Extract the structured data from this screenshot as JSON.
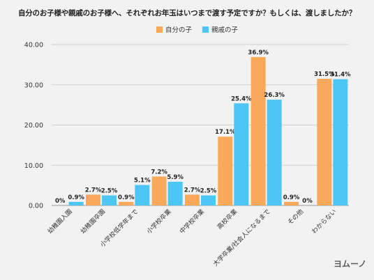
{
  "title": "自分のお子様や親戚のお子様へ、それぞれお年玉はいつまで渡す予定ですか？もしくは、渡しましたか？",
  "logo": "ヨムーノ",
  "colors": {
    "series1": "#f9a95a",
    "series2": "#4dc5f5",
    "grid": "#cfcfcf"
  },
  "chart_data": {
    "type": "bar",
    "title": "自分のお子様や親戚のお子様へ、それぞれお年玉はいつまで渡す予定ですか？もしくは、渡しましたか？",
    "xlabel": "",
    "ylabel": "",
    "ylim": [
      0,
      40
    ],
    "yticks": [
      0,
      10,
      20,
      30,
      40
    ],
    "ytick_labels": [
      "0.00",
      "10.00",
      "20.00",
      "30.00",
      "40.00"
    ],
    "grid": true,
    "legend_position": "top-center",
    "categories": [
      "幼稚園入園",
      "幼稚園卒園",
      "小学校低学年まで",
      "小学校卒業",
      "中学校卒業",
      "高校卒業",
      "大学卒業/社会人になるまで",
      "その他",
      "わからない"
    ],
    "series": [
      {
        "name": "自分の子",
        "values": [
          0,
          2.7,
          0.9,
          7.2,
          2.7,
          17.1,
          36.9,
          0.9,
          31.5
        ],
        "labels": [
          "0%",
          "2.7%",
          "0.9%",
          "7.2%",
          "2.7%",
          "17.1%",
          "36.9%",
          "0.9%",
          "31.5%"
        ]
      },
      {
        "name": "親戚の子",
        "values": [
          0.9,
          2.5,
          5.1,
          5.9,
          2.5,
          25.4,
          26.3,
          0,
          31.4
        ],
        "labels": [
          "0.9%",
          "2.5%",
          "5.1%",
          "5.9%",
          "2.5%",
          "25.4%",
          "26.3%",
          "0%",
          "31.4%"
        ]
      }
    ]
  }
}
